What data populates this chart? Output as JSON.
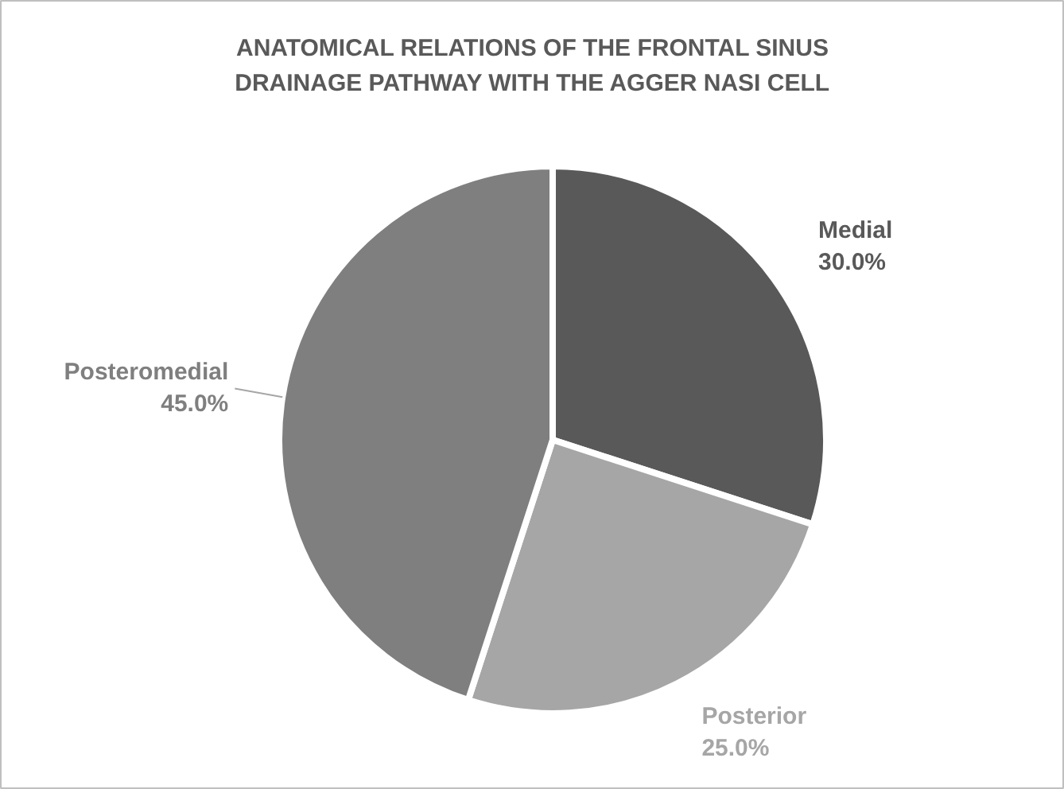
{
  "chart_data": {
    "type": "pie",
    "title": "ANATOMICAL RELATIONS OF THE FRONTAL SINUS DRAINAGE PATHWAY WITH THE AGGER NASI CELL",
    "categories": [
      "Medial",
      "Posterior",
      "Posteromedial"
    ],
    "values": [
      30,
      25,
      45
    ],
    "colors": [
      "#595959",
      "#a6a6a6",
      "#7f7f7f"
    ],
    "value_labels": [
      "30.0%",
      "25.0%",
      "45.0%"
    ]
  }
}
